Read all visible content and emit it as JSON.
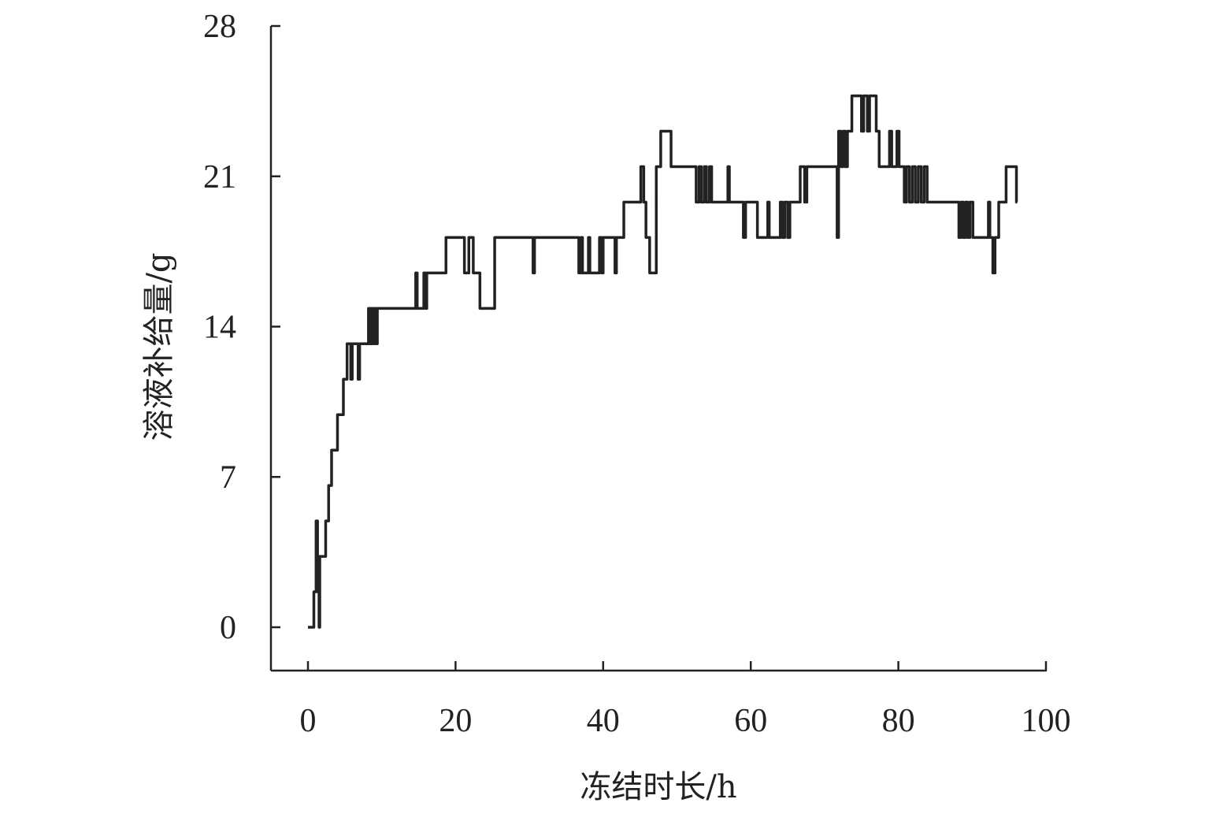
{
  "chart_data": {
    "type": "line",
    "title": "",
    "xlabel": "冻结时长/h",
    "ylabel": "溶液补给量/g",
    "xlim": [
      0,
      100
    ],
    "ylim": [
      0,
      28
    ],
    "xticks": [
      0,
      20,
      40,
      60,
      80,
      100
    ],
    "yticks": [
      0,
      7,
      14,
      21,
      28
    ],
    "xtick_labels": [
      "0",
      "20",
      "40",
      "60",
      "80",
      "100"
    ],
    "ytick_labels": [
      "0",
      "7",
      "14",
      "21",
      "28"
    ],
    "grid": false,
    "line_color": "#222222",
    "series": [
      {
        "step": true,
        "points": [
          [
            0,
            0
          ],
          [
            0.8,
            1.65
          ],
          [
            1.1,
            4.95
          ],
          [
            1.3,
            1.65
          ],
          [
            1.5,
            0
          ],
          [
            1.6,
            3.3
          ],
          [
            2.4,
            4.95
          ],
          [
            2.8,
            6.6
          ],
          [
            3.2,
            8.25
          ],
          [
            4.0,
            9.9
          ],
          [
            4.8,
            11.55
          ],
          [
            5.3,
            13.2
          ],
          [
            5.8,
            11.55
          ],
          [
            6.0,
            13.2
          ],
          [
            6.8,
            11.55
          ],
          [
            7.0,
            13.2
          ],
          [
            8.2,
            14.85
          ],
          [
            8.4,
            13.2
          ],
          [
            8.6,
            14.85
          ],
          [
            8.8,
            13.2
          ],
          [
            9.0,
            14.85
          ],
          [
            9.2,
            13.2
          ],
          [
            9.4,
            14.85
          ],
          [
            14.6,
            16.5
          ],
          [
            14.8,
            14.85
          ],
          [
            15.7,
            16.5
          ],
          [
            15.9,
            14.85
          ],
          [
            16.1,
            16.5
          ],
          [
            18.7,
            18.15
          ],
          [
            21.2,
            16.5
          ],
          [
            21.8,
            18.15
          ],
          [
            22.4,
            16.5
          ],
          [
            23.3,
            14.85
          ],
          [
            25.3,
            18.15
          ],
          [
            30.5,
            16.5
          ],
          [
            30.7,
            18.15
          ],
          [
            36.7,
            16.5
          ],
          [
            37.0,
            18.15
          ],
          [
            37.2,
            16.5
          ],
          [
            38.0,
            18.15
          ],
          [
            38.2,
            16.5
          ],
          [
            39.5,
            18.15
          ],
          [
            39.8,
            16.5
          ],
          [
            40.0,
            18.15
          ],
          [
            41.6,
            16.5
          ],
          [
            41.8,
            18.15
          ],
          [
            42.8,
            19.8
          ],
          [
            45.1,
            21.45
          ],
          [
            45.5,
            19.8
          ],
          [
            45.8,
            18.15
          ],
          [
            46.3,
            16.5
          ],
          [
            47.2,
            21.45
          ],
          [
            47.8,
            23.1
          ],
          [
            49.2,
            21.45
          ],
          [
            52.6,
            19.8
          ],
          [
            53.0,
            21.45
          ],
          [
            53.3,
            19.8
          ],
          [
            53.7,
            21.45
          ],
          [
            54.0,
            19.8
          ],
          [
            54.4,
            21.45
          ],
          [
            54.7,
            19.8
          ],
          [
            56.9,
            21.45
          ],
          [
            57.1,
            19.8
          ],
          [
            59.0,
            18.15
          ],
          [
            59.3,
            19.8
          ],
          [
            60.9,
            18.15
          ],
          [
            62.3,
            19.8
          ],
          [
            62.5,
            18.15
          ],
          [
            64.0,
            19.8
          ],
          [
            64.3,
            18.15
          ],
          [
            64.6,
            19.8
          ],
          [
            65.0,
            18.15
          ],
          [
            65.3,
            19.8
          ],
          [
            66.7,
            21.45
          ],
          [
            67.3,
            19.8
          ],
          [
            67.6,
            21.45
          ],
          [
            71.7,
            18.15
          ],
          [
            71.9,
            23.1
          ],
          [
            72.2,
            21.45
          ],
          [
            72.5,
            23.1
          ],
          [
            72.8,
            21.45
          ],
          [
            73.1,
            23.1
          ],
          [
            73.7,
            24.75
          ],
          [
            75.0,
            23.1
          ],
          [
            75.3,
            24.75
          ],
          [
            75.8,
            23.1
          ],
          [
            76.1,
            24.75
          ],
          [
            77.0,
            23.1
          ],
          [
            77.4,
            21.45
          ],
          [
            78.8,
            23.1
          ],
          [
            79.1,
            21.45
          ],
          [
            79.8,
            23.1
          ],
          [
            80.1,
            21.45
          ],
          [
            80.8,
            19.8
          ],
          [
            81.1,
            21.45
          ],
          [
            81.5,
            19.8
          ],
          [
            81.9,
            21.45
          ],
          [
            82.3,
            19.8
          ],
          [
            82.7,
            21.45
          ],
          [
            83.1,
            19.8
          ],
          [
            83.5,
            21.45
          ],
          [
            83.9,
            19.8
          ],
          [
            88.2,
            18.15
          ],
          [
            88.5,
            19.8
          ],
          [
            88.8,
            18.15
          ],
          [
            89.1,
            19.8
          ],
          [
            89.4,
            18.15
          ],
          [
            89.7,
            19.8
          ],
          [
            90.1,
            18.15
          ],
          [
            92.2,
            19.8
          ],
          [
            92.4,
            18.15
          ],
          [
            92.8,
            16.5
          ],
          [
            93.1,
            18.15
          ],
          [
            93.6,
            19.8
          ],
          [
            94.6,
            21.45
          ],
          [
            96.0,
            19.8
          ],
          [
            96.1,
            19.8
          ]
        ]
      }
    ]
  }
}
